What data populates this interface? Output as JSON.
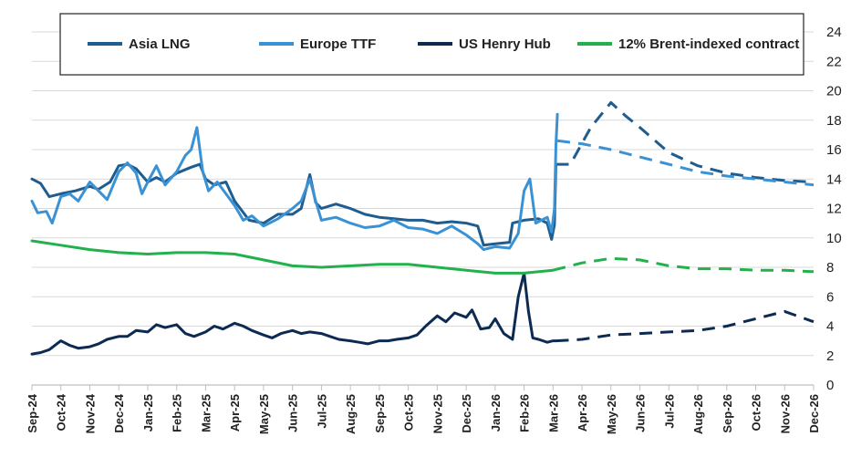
{
  "chart_data": {
    "type": "line",
    "title": "",
    "xlabel": "",
    "ylabel": "",
    "ylim": [
      0,
      24
    ],
    "yticks": [
      0,
      2,
      4,
      6,
      8,
      10,
      12,
      14,
      16,
      18,
      20,
      22,
      24
    ],
    "grid": true,
    "y_axis_side": "right",
    "legend_position": "top",
    "x_tick_labels": [
      "Sep-24",
      "Oct-24",
      "Nov-24",
      "Dec-24",
      "Jan-25",
      "Feb-25",
      "Mar-25",
      "Apr-25",
      "May-25",
      "Jun-25",
      "Jul-25",
      "Aug-25",
      "Sep-25",
      "Oct-25",
      "Nov-25",
      "Dec-25",
      "Jan-26",
      "Feb-26",
      "Mar-26",
      "Apr-26",
      "May-26",
      "Jun-26",
      "Jul-26",
      "Aug-26",
      "Sep-26",
      "Oct-26",
      "Nov-26",
      "Dec-26"
    ],
    "x_unit": "month index (0 = Sep-24)",
    "series": [
      {
        "name": "Asia LNG",
        "color": "#1f5c8f",
        "historical": [
          [
            0,
            14.0
          ],
          [
            0.3,
            13.7
          ],
          [
            0.6,
            12.8
          ],
          [
            1,
            13.0
          ],
          [
            1.5,
            13.2
          ],
          [
            2,
            13.5
          ],
          [
            2.3,
            13.3
          ],
          [
            2.7,
            13.8
          ],
          [
            3,
            14.9
          ],
          [
            3.3,
            15.0
          ],
          [
            3.6,
            14.7
          ],
          [
            4,
            13.8
          ],
          [
            4.3,
            14.1
          ],
          [
            4.6,
            13.8
          ],
          [
            5,
            14.4
          ],
          [
            5.5,
            14.8
          ],
          [
            5.8,
            15.0
          ],
          [
            6,
            14.0
          ],
          [
            6.3,
            13.6
          ],
          [
            6.7,
            13.8
          ],
          [
            7,
            12.5
          ],
          [
            7.5,
            11.2
          ],
          [
            8,
            11.0
          ],
          [
            8.5,
            11.6
          ],
          [
            9,
            11.6
          ],
          [
            9.3,
            12.0
          ],
          [
            9.6,
            14.3
          ],
          [
            9.8,
            12.4
          ],
          [
            10,
            12.0
          ],
          [
            10.5,
            12.3
          ],
          [
            11,
            12.0
          ],
          [
            11.5,
            11.6
          ],
          [
            12,
            11.4
          ],
          [
            12.5,
            11.3
          ],
          [
            13,
            11.2
          ],
          [
            13.5,
            11.2
          ],
          [
            14,
            11.0
          ],
          [
            14.5,
            11.1
          ],
          [
            15,
            11.0
          ],
          [
            15.4,
            10.8
          ],
          [
            15.6,
            9.5
          ],
          [
            16,
            9.6
          ],
          [
            16.5,
            9.7
          ],
          [
            16.6,
            11.0
          ],
          [
            17,
            11.2
          ],
          [
            17.5,
            11.3
          ],
          [
            17.8,
            11.0
          ],
          [
            17.95,
            9.9
          ],
          [
            18.05,
            10.9
          ],
          [
            18.1,
            15.0
          ]
        ],
        "forecast": [
          [
            18.1,
            15.0
          ],
          [
            18.6,
            15.0
          ],
          [
            19.3,
            17.5
          ],
          [
            20,
            19.2
          ],
          [
            20.5,
            18.3
          ],
          [
            21,
            17.5
          ],
          [
            22,
            15.8
          ],
          [
            23,
            14.9
          ],
          [
            24,
            14.4
          ],
          [
            25,
            14.1
          ],
          [
            26,
            13.9
          ],
          [
            27,
            13.8
          ]
        ]
      },
      {
        "name": "Europe TTF",
        "color": "#3a92d4",
        "historical": [
          [
            0,
            12.5
          ],
          [
            0.2,
            11.7
          ],
          [
            0.5,
            11.8
          ],
          [
            0.7,
            11.0
          ],
          [
            1,
            12.8
          ],
          [
            1.3,
            13.0
          ],
          [
            1.6,
            12.5
          ],
          [
            2,
            13.8
          ],
          [
            2.3,
            13.2
          ],
          [
            2.6,
            12.6
          ],
          [
            3,
            14.5
          ],
          [
            3.3,
            15.1
          ],
          [
            3.6,
            14.4
          ],
          [
            3.8,
            13.0
          ],
          [
            4,
            13.8
          ],
          [
            4.3,
            14.9
          ],
          [
            4.6,
            13.6
          ],
          [
            5,
            14.5
          ],
          [
            5.3,
            15.6
          ],
          [
            5.5,
            16.0
          ],
          [
            5.7,
            17.5
          ],
          [
            5.9,
            14.5
          ],
          [
            6.1,
            13.2
          ],
          [
            6.4,
            13.8
          ],
          [
            6.7,
            13.0
          ],
          [
            7,
            12.2
          ],
          [
            7.3,
            11.2
          ],
          [
            7.6,
            11.5
          ],
          [
            8,
            10.8
          ],
          [
            8.5,
            11.3
          ],
          [
            9,
            12.0
          ],
          [
            9.3,
            12.5
          ],
          [
            9.6,
            14.0
          ],
          [
            9.8,
            12.5
          ],
          [
            10,
            11.2
          ],
          [
            10.5,
            11.4
          ],
          [
            11,
            11.0
          ],
          [
            11.5,
            10.7
          ],
          [
            12,
            10.8
          ],
          [
            12.5,
            11.2
          ],
          [
            13,
            10.7
          ],
          [
            13.5,
            10.6
          ],
          [
            14,
            10.3
          ],
          [
            14.5,
            10.8
          ],
          [
            15,
            10.2
          ],
          [
            15.4,
            9.6
          ],
          [
            15.6,
            9.2
          ],
          [
            16,
            9.4
          ],
          [
            16.5,
            9.3
          ],
          [
            16.8,
            10.3
          ],
          [
            17,
            13.2
          ],
          [
            17.2,
            14.0
          ],
          [
            17.4,
            11.0
          ],
          [
            17.8,
            11.4
          ],
          [
            17.95,
            10.4
          ],
          [
            18.05,
            12.0
          ],
          [
            18.1,
            16.3
          ],
          [
            18.15,
            18.4
          ]
        ],
        "forecast": [
          [
            18.15,
            16.6
          ],
          [
            19,
            16.4
          ],
          [
            20,
            16.0
          ],
          [
            21,
            15.5
          ],
          [
            22,
            15.0
          ],
          [
            23,
            14.5
          ],
          [
            24,
            14.2
          ],
          [
            25,
            14.0
          ],
          [
            26,
            13.8
          ],
          [
            27,
            13.6
          ]
        ]
      },
      {
        "name": "US Henry Hub",
        "color": "#0d2b52",
        "historical": [
          [
            0,
            2.1
          ],
          [
            0.3,
            2.2
          ],
          [
            0.6,
            2.4
          ],
          [
            1,
            3.0
          ],
          [
            1.3,
            2.7
          ],
          [
            1.6,
            2.5
          ],
          [
            2,
            2.6
          ],
          [
            2.3,
            2.8
          ],
          [
            2.6,
            3.1
          ],
          [
            3,
            3.3
          ],
          [
            3.3,
            3.3
          ],
          [
            3.6,
            3.7
          ],
          [
            4,
            3.6
          ],
          [
            4.3,
            4.1
          ],
          [
            4.6,
            3.9
          ],
          [
            5,
            4.1
          ],
          [
            5.3,
            3.5
          ],
          [
            5.6,
            3.3
          ],
          [
            6,
            3.6
          ],
          [
            6.3,
            4.0
          ],
          [
            6.6,
            3.8
          ],
          [
            7,
            4.2
          ],
          [
            7.3,
            4.0
          ],
          [
            7.6,
            3.7
          ],
          [
            8,
            3.4
          ],
          [
            8.3,
            3.2
          ],
          [
            8.6,
            3.5
          ],
          [
            9,
            3.7
          ],
          [
            9.3,
            3.5
          ],
          [
            9.6,
            3.6
          ],
          [
            10,
            3.5
          ],
          [
            10.3,
            3.3
          ],
          [
            10.6,
            3.1
          ],
          [
            11,
            3.0
          ],
          [
            11.3,
            2.9
          ],
          [
            11.6,
            2.8
          ],
          [
            12,
            3.0
          ],
          [
            12.3,
            3.0
          ],
          [
            12.6,
            3.1
          ],
          [
            13,
            3.2
          ],
          [
            13.3,
            3.4
          ],
          [
            13.6,
            4.0
          ],
          [
            14,
            4.7
          ],
          [
            14.3,
            4.3
          ],
          [
            14.6,
            4.9
          ],
          [
            15,
            4.6
          ],
          [
            15.2,
            5.1
          ],
          [
            15.5,
            3.8
          ],
          [
            15.8,
            3.9
          ],
          [
            16,
            4.5
          ],
          [
            16.3,
            3.5
          ],
          [
            16.6,
            3.1
          ],
          [
            16.8,
            6.0
          ],
          [
            17.0,
            7.6
          ],
          [
            17.15,
            5.0
          ],
          [
            17.3,
            3.2
          ],
          [
            17.5,
            3.1
          ],
          [
            17.8,
            2.9
          ],
          [
            18,
            3.0
          ],
          [
            18.1,
            3.0
          ]
        ],
        "forecast": [
          [
            18.1,
            3.0
          ],
          [
            19,
            3.1
          ],
          [
            20,
            3.4
          ],
          [
            21,
            3.5
          ],
          [
            22,
            3.6
          ],
          [
            23,
            3.7
          ],
          [
            24,
            4.0
          ],
          [
            25,
            4.5
          ],
          [
            26,
            5.0
          ],
          [
            27,
            4.3
          ]
        ]
      },
      {
        "name": "12% Brent-indexed contract",
        "color": "#22b14c",
        "historical": [
          [
            0,
            9.8
          ],
          [
            1,
            9.5
          ],
          [
            2,
            9.2
          ],
          [
            3,
            9.0
          ],
          [
            4,
            8.9
          ],
          [
            5,
            9.0
          ],
          [
            6,
            9.0
          ],
          [
            7,
            8.9
          ],
          [
            8,
            8.5
          ],
          [
            9,
            8.1
          ],
          [
            10,
            8.0
          ],
          [
            11,
            8.1
          ],
          [
            12,
            8.2
          ],
          [
            13,
            8.2
          ],
          [
            14,
            8.0
          ],
          [
            15,
            7.8
          ],
          [
            16,
            7.6
          ],
          [
            17,
            7.6
          ],
          [
            18,
            7.8
          ]
        ],
        "forecast": [
          [
            18,
            7.8
          ],
          [
            19,
            8.3
          ],
          [
            20,
            8.6
          ],
          [
            21,
            8.5
          ],
          [
            22,
            8.1
          ],
          [
            23,
            7.9
          ],
          [
            24,
            7.9
          ],
          [
            25,
            7.8
          ],
          [
            26,
            7.8
          ],
          [
            27,
            7.7
          ]
        ]
      }
    ]
  }
}
